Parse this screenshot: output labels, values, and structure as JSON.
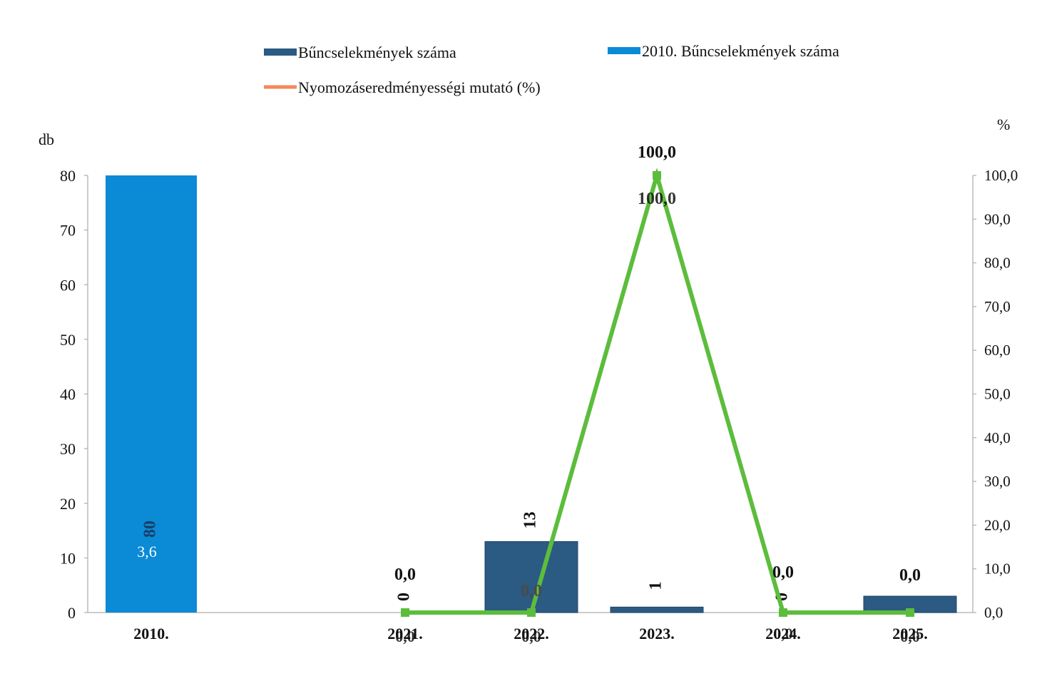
{
  "colors": {
    "bar_dark": "#2b5a82",
    "bar_light": "#0b8ad6",
    "line": "#5cbd3c",
    "legend_orange": "#f4895a",
    "axis": "#bbbbbb",
    "text": "#111111"
  },
  "chart_data": {
    "type": "bar",
    "categories": [
      "2010.",
      "2021.",
      "2022.",
      "2023.",
      "2024.",
      "2025."
    ],
    "y_left": {
      "label": "db",
      "ticks": [
        "0",
        "10",
        "20",
        "30",
        "40",
        "50",
        "60",
        "70",
        "80"
      ],
      "range": [
        0,
        80
      ]
    },
    "y_right": {
      "label": "%",
      "ticks": [
        "0,0",
        "10,0",
        "20,0",
        "30,0",
        "40,0",
        "50,0",
        "60,0",
        "70,0",
        "80,0",
        "90,0",
        "100,0"
      ],
      "range": [
        0,
        100
      ]
    },
    "legend": {
      "placement": "top",
      "items": [
        {
          "label": "Bűncselekmények száma",
          "color_key": "bar_dark",
          "marker": "bar"
        },
        {
          "label": "2010. Bűncselekmények száma",
          "color_key": "bar_light",
          "marker": "bar"
        },
        {
          "label": "Nyomozáseredményességi mutató (%)",
          "color_key": "legend_orange",
          "marker": "line"
        }
      ]
    },
    "series": [
      {
        "name": "Bűncselekmények száma",
        "type": "bar",
        "axis": "left",
        "color_key": "bar_dark",
        "values": [
          null,
          0,
          13,
          1,
          0,
          3
        ],
        "value_labels": [
          "",
          "0",
          "13",
          "1",
          "0",
          ""
        ]
      },
      {
        "name": "2010. Bűncselekmények száma",
        "type": "bar",
        "axis": "left",
        "color_key": "bar_light",
        "values": [
          80,
          null,
          null,
          null,
          null,
          null
        ],
        "value_labels": [
          "80",
          "",
          "",
          "",
          "",
          ""
        ]
      },
      {
        "name": "Nyomozáseredményességi mutató (%)",
        "type": "line",
        "axis": "right",
        "color_key": "line",
        "values": [
          null,
          0,
          0,
          100,
          0,
          0
        ],
        "value_labels": [
          "",
          "0,0",
          "0,0",
          "100,0",
          "0,0",
          "0,0"
        ]
      }
    ],
    "extra_labels": [
      {
        "category": "2010.",
        "text": "3,6"
      },
      {
        "category": "2021.",
        "text": "0,0"
      },
      {
        "category": "2022.",
        "text": "0,0"
      },
      {
        "category": "2022.",
        "text": "0,0"
      },
      {
        "category": "2023.",
        "text": "100,0"
      },
      {
        "category": "2024.",
        "text": "0,0"
      },
      {
        "category": "2025.",
        "text": "0,0"
      }
    ]
  }
}
